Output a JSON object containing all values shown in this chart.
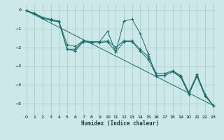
{
  "xlabel": "Humidex (Indice chaleur)",
  "background_color": "#cce8e8",
  "grid_color": "#aacccc",
  "line_color": "#1a6b6b",
  "xlim": [
    -0.5,
    23.5
  ],
  "ylim": [
    -5.6,
    0.3
  ],
  "yticks": [
    0,
    -1,
    -2,
    -3,
    -4,
    -5
  ],
  "xticks": [
    0,
    1,
    2,
    3,
    4,
    5,
    6,
    7,
    8,
    9,
    10,
    11,
    12,
    13,
    14,
    15,
    16,
    17,
    18,
    19,
    20,
    21,
    22,
    23
  ],
  "series": [
    {
      "x": [
        0,
        1,
        2,
        3,
        4,
        5,
        6,
        7,
        8,
        9,
        10,
        11,
        12,
        13,
        14,
        15,
        16,
        17,
        18,
        19,
        20,
        21,
        22,
        23
      ],
      "y": [
        -0.05,
        -0.2,
        -0.45,
        -0.55,
        -0.65,
        -2.1,
        -2.1,
        -1.65,
        -1.7,
        -1.7,
        -1.15,
        -2.25,
        -0.6,
        -0.5,
        -1.25,
        -2.35,
        -3.55,
        -3.5,
        -3.3,
        -3.55,
        -4.5,
        -3.5,
        -4.6,
        -5.1
      ]
    },
    {
      "x": [
        0,
        1,
        2,
        3,
        4,
        5,
        6,
        7,
        8,
        9,
        10,
        11,
        12,
        13,
        14,
        15,
        16,
        17,
        18,
        19,
        20,
        21,
        22,
        23
      ],
      "y": [
        -0.05,
        -0.2,
        -0.45,
        -0.55,
        -0.65,
        -2.1,
        -2.2,
        -1.7,
        -1.75,
        -1.75,
        -1.7,
        -2.25,
        -1.7,
        -1.7,
        -2.2,
        -2.65,
        -3.5,
        -3.5,
        -3.3,
        -3.6,
        -4.5,
        -3.55,
        -4.6,
        -5.1
      ]
    },
    {
      "x": [
        0,
        1,
        2,
        3,
        4,
        5,
        6,
        7,
        8,
        9,
        10,
        11,
        12,
        13,
        14,
        15,
        16,
        17,
        18,
        19,
        20,
        21,
        22,
        23
      ],
      "y": [
        -0.05,
        -0.18,
        -0.4,
        -0.5,
        -0.6,
        -1.85,
        -1.95,
        -1.65,
        -1.7,
        -1.7,
        -1.65,
        -2.0,
        -1.65,
        -1.65,
        -2.1,
        -2.5,
        -3.4,
        -3.4,
        -3.25,
        -3.5,
        -4.4,
        -3.45,
        -4.5,
        -5.1
      ]
    },
    {
      "x": [
        0,
        23
      ],
      "y": [
        -0.05,
        -5.1
      ]
    }
  ]
}
